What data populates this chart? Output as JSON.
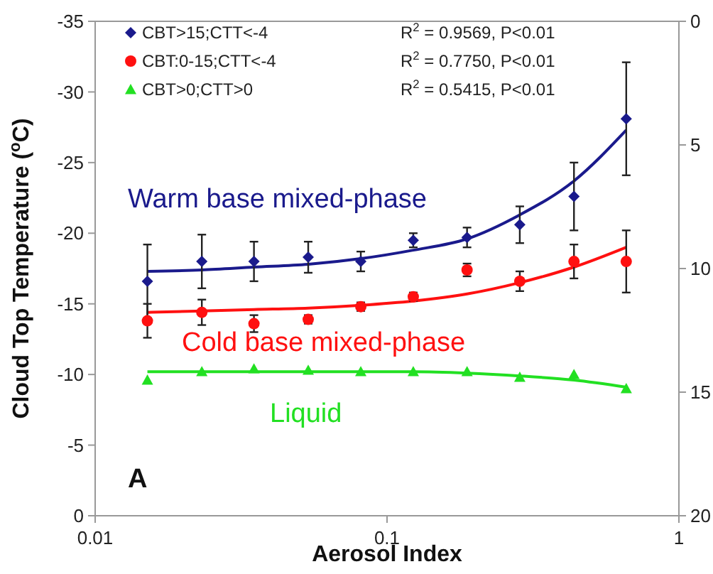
{
  "chart_data": {
    "type": "scatter",
    "xlabel": "Aerosol Index",
    "ylabel": "Cloud Top Temperature ($^{o}$C)",
    "log": "x",
    "grid": false,
    "legend": "top left",
    "xlim": [
      0.01,
      1
    ],
    "xticks": [
      0.01,
      0.1,
      1
    ],
    "ylim": [
      0,
      -35
    ],
    "yticks": [
      0,
      -5,
      -10,
      -15,
      -20,
      -25,
      -30,
      -35
    ],
    "y2lim": [
      20,
      0
    ],
    "y2ticks": [
      0,
      5,
      10,
      15,
      20
    ],
    "x": [
      0.0151,
      0.0232,
      0.035,
      0.0537,
      0.0813,
      0.123,
      0.188,
      0.285,
      0.437,
      0.66
    ],
    "series": [
      {
        "name": "CBT>15;CTT<-4",
        "color": "#1a1a8c",
        "marker": "diamond",
        "values": [
          -16.6,
          -18,
          -18,
          -18.3,
          -18,
          -19.5,
          -19.7,
          -20.6,
          -22.6,
          -28.1
        ],
        "errors": [
          2.6,
          1.9,
          1.4,
          1.1,
          0.7,
          0.5,
          0.7,
          1.3,
          2.4,
          4.0
        ]
      },
      {
        "name": "CBT:0-15;CTT<-4",
        "color": "#ff1010",
        "marker": "circle",
        "values": [
          -13.8,
          -14.4,
          -13.6,
          -13.9,
          -14.8,
          -15.5,
          -17.4,
          -16.6,
          -18,
          -18
        ],
        "errors": [
          1.2,
          0.9,
          0.6,
          0.3,
          0.3,
          0.3,
          0.45,
          0.7,
          1.2,
          2.2
        ]
      },
      {
        "name": "CBT>0;CTT>0",
        "color": "#22e022",
        "marker": "triangle",
        "values": [
          -9.6,
          -10.2,
          -10.4,
          -10.3,
          -10.2,
          -10.2,
          -10.2,
          -9.8,
          -10,
          -9
        ]
      },
      {
        "type": "line",
        "color": "#1a1a8c",
        "values": [
          -17.3,
          -17.4,
          -17.6,
          -17.8,
          -18.2,
          -18.8,
          -19.6,
          -21.3,
          -23.7,
          -27.3
        ]
      },
      {
        "type": "line",
        "color": "#ff1010",
        "values": [
          -14.4,
          -14.5,
          -14.6,
          -14.7,
          -14.9,
          -15.2,
          -15.7,
          -16.5,
          -17.6,
          -19
        ]
      },
      {
        "type": "line",
        "color": "#22e022",
        "values": [
          -10.2,
          -10.2,
          -10.2,
          -10.2,
          -10.2,
          -10.2,
          -10.1,
          -9.9,
          -9.6,
          -9.1
        ]
      }
    ],
    "annotations": [
      "R$^{2}$ = 0.9569, P<0.01",
      "R$^{2}$ = 0.7750, P<0.01",
      "R$^{2}$ = 0.5415, P<0.01",
      "Warm base mixed-phase",
      "Cold base mixed-phase",
      "Liquid",
      "A"
    ]
  }
}
